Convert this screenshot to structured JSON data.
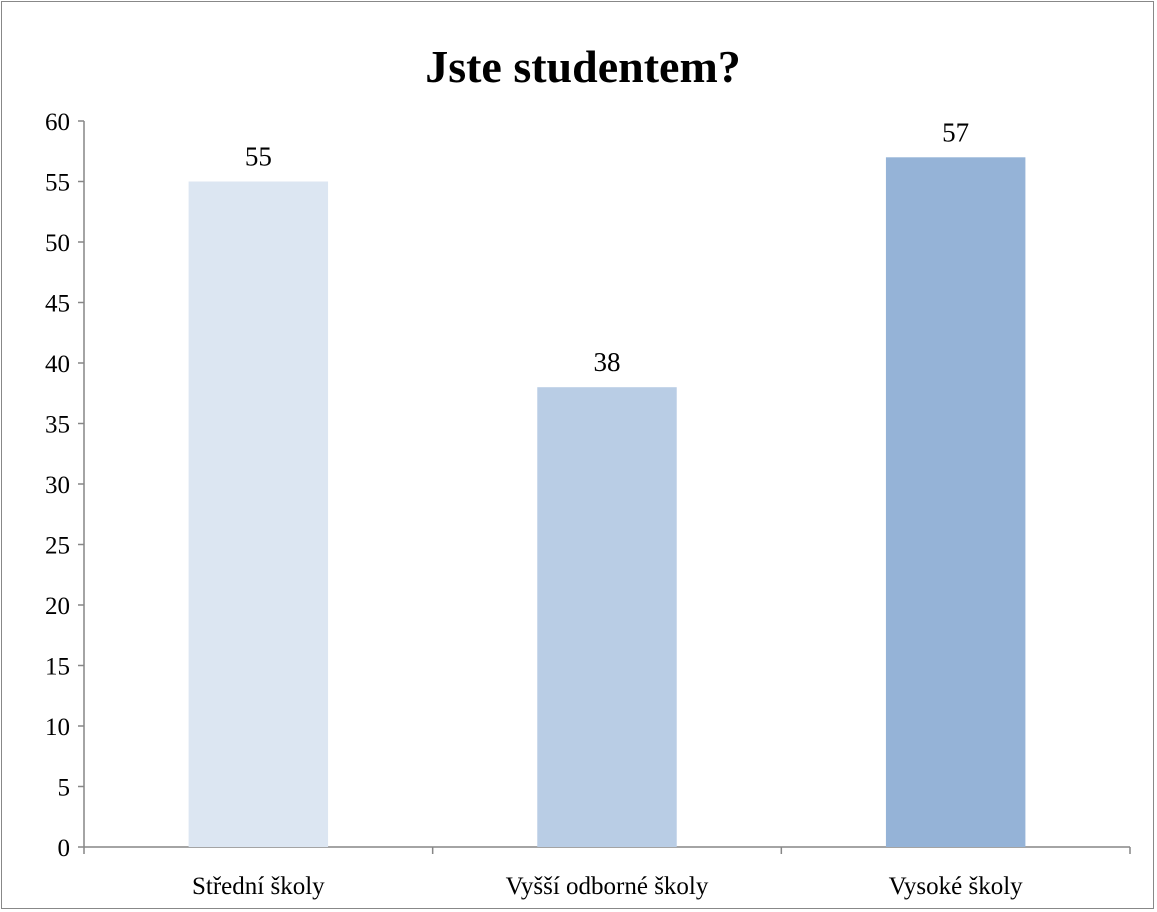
{
  "chart_data": {
    "type": "bar",
    "title": "Jste studentem?",
    "categories": [
      "Střední školy",
      "Vyšší odborné školy",
      "Vysoké školy"
    ],
    "values": [
      55,
      38,
      57
    ],
    "data_labels": [
      "55",
      "38",
      "57"
    ],
    "colors": [
      "#dce6f2",
      "#b9cde5",
      "#95b3d7"
    ],
    "ylim": [
      0,
      60
    ],
    "ytick_step": 5,
    "yticks": [
      "0",
      "5",
      "10",
      "15",
      "20",
      "25",
      "30",
      "35",
      "40",
      "45",
      "50",
      "55",
      "60"
    ],
    "grid": false,
    "legend": "none",
    "axis_color": "#868686"
  }
}
